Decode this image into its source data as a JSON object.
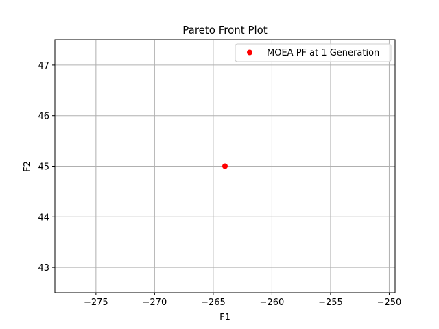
{
  "chart_data": {
    "type": "scatter",
    "title": "Pareto Front Plot",
    "xlabel": "F1",
    "ylabel": "F2",
    "xlim": [
      -278.5,
      -249.5
    ],
    "ylim": [
      42.5,
      47.5
    ],
    "xticks": [
      -275,
      -270,
      -265,
      -260,
      -255,
      -250
    ],
    "yticks": [
      43,
      44,
      45,
      46,
      47
    ],
    "grid": true,
    "legend_position": "top-right",
    "series": [
      {
        "name": "MOEA PF at 1 Generation",
        "color": "#ff0000",
        "marker": "circle",
        "points": [
          {
            "x": -264,
            "y": 45
          }
        ]
      }
    ]
  }
}
